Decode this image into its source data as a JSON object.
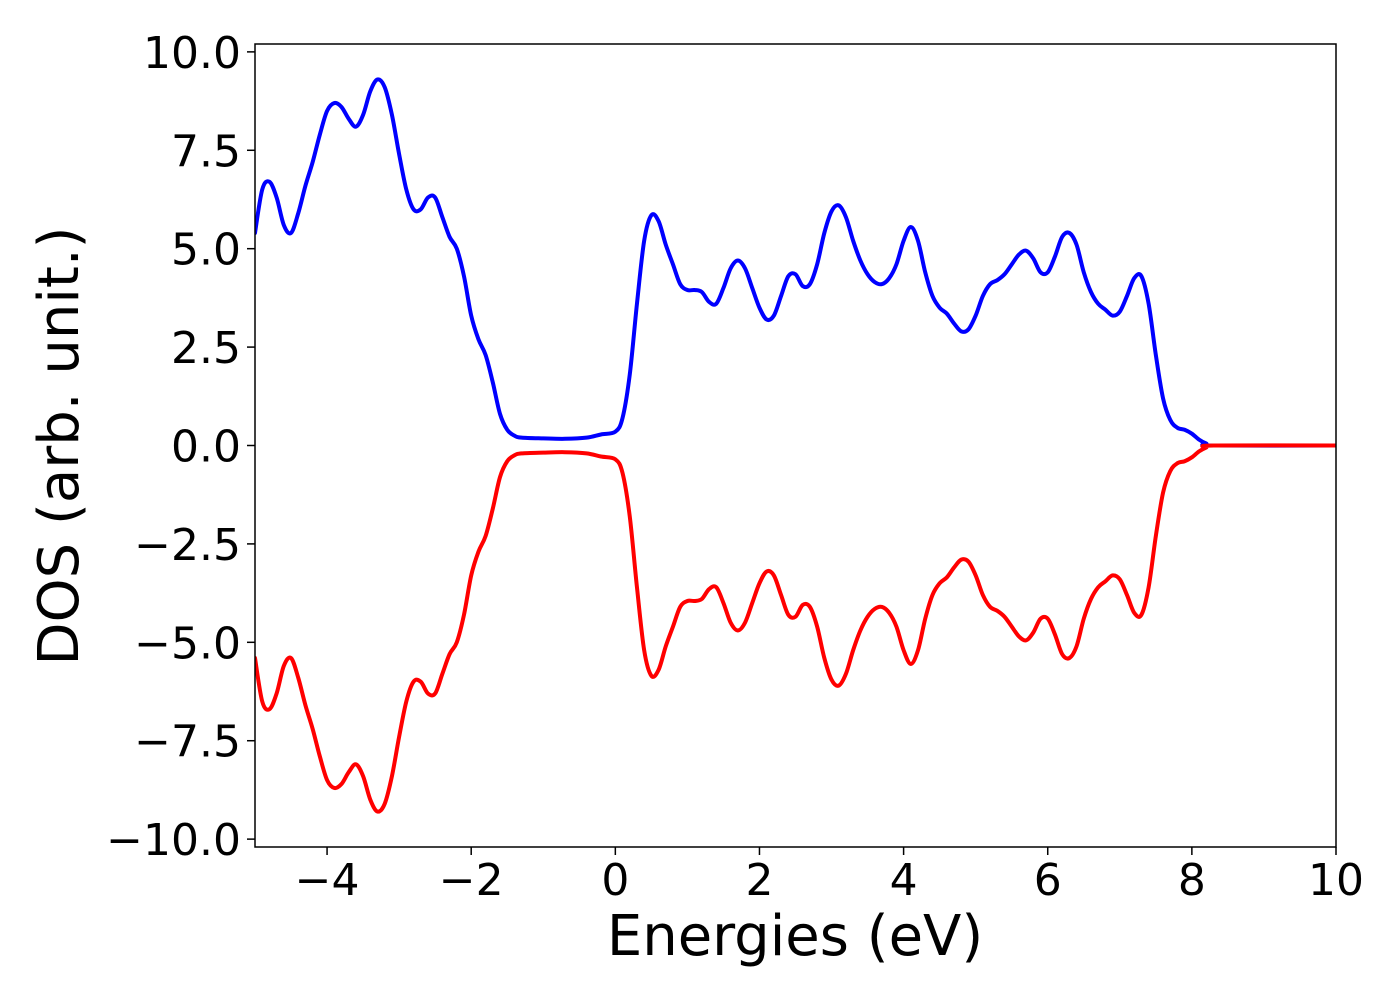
{
  "chart_data": {
    "type": "line",
    "title": "",
    "xlabel": "Energies (eV)",
    "ylabel": "DOS (arb. unit.)",
    "xlim": [
      -5,
      10
    ],
    "ylim": [
      -10.2,
      10.2
    ],
    "xticks": [
      -4,
      -2,
      0,
      2,
      4,
      6,
      8,
      10
    ],
    "xtick_labels": [
      "−4",
      "−2",
      "0",
      "2",
      "4",
      "6",
      "8",
      "10"
    ],
    "yticks": [
      10.0,
      7.5,
      5.0,
      2.5,
      0.0,
      -2.5,
      -5.0,
      -7.5,
      -10.0
    ],
    "ytick_labels": [
      "10.0",
      "7.5",
      "5.0",
      "2.5",
      "0.0",
      "−2.5",
      "−5.0",
      "−7.5",
      "−10.0"
    ],
    "grid": false,
    "legend": "none",
    "series": [
      {
        "color": "#0000ff",
        "points": [
          [
            -5.0,
            5.4
          ],
          [
            -4.9,
            6.5
          ],
          [
            -4.8,
            6.7
          ],
          [
            -4.7,
            6.3
          ],
          [
            -4.6,
            5.6
          ],
          [
            -4.5,
            5.4
          ],
          [
            -4.4,
            5.9
          ],
          [
            -4.3,
            6.6
          ],
          [
            -4.2,
            7.2
          ],
          [
            -4.1,
            7.9
          ],
          [
            -4.0,
            8.5
          ],
          [
            -3.9,
            8.7
          ],
          [
            -3.8,
            8.6
          ],
          [
            -3.7,
            8.3
          ],
          [
            -3.6,
            8.1
          ],
          [
            -3.5,
            8.4
          ],
          [
            -3.4,
            9.0
          ],
          [
            -3.3,
            9.3
          ],
          [
            -3.2,
            9.1
          ],
          [
            -3.1,
            8.4
          ],
          [
            -3.0,
            7.4
          ],
          [
            -2.9,
            6.5
          ],
          [
            -2.8,
            6.0
          ],
          [
            -2.7,
            6.0
          ],
          [
            -2.6,
            6.3
          ],
          [
            -2.5,
            6.3
          ],
          [
            -2.4,
            5.8
          ],
          [
            -2.3,
            5.3
          ],
          [
            -2.2,
            5.0
          ],
          [
            -2.1,
            4.3
          ],
          [
            -2.0,
            3.3
          ],
          [
            -1.9,
            2.7
          ],
          [
            -1.8,
            2.3
          ],
          [
            -1.7,
            1.6
          ],
          [
            -1.6,
            0.8
          ],
          [
            -1.5,
            0.4
          ],
          [
            -1.4,
            0.25
          ],
          [
            -1.3,
            0.2
          ],
          [
            -1.0,
            0.18
          ],
          [
            -0.7,
            0.17
          ],
          [
            -0.4,
            0.2
          ],
          [
            -0.2,
            0.28
          ],
          [
            0.0,
            0.35
          ],
          [
            0.1,
            0.7
          ],
          [
            0.2,
            1.8
          ],
          [
            0.3,
            3.6
          ],
          [
            0.4,
            5.2
          ],
          [
            0.5,
            5.85
          ],
          [
            0.6,
            5.7
          ],
          [
            0.7,
            5.1
          ],
          [
            0.8,
            4.6
          ],
          [
            0.9,
            4.1
          ],
          [
            1.0,
            3.95
          ],
          [
            1.1,
            3.95
          ],
          [
            1.2,
            3.9
          ],
          [
            1.3,
            3.65
          ],
          [
            1.4,
            3.6
          ],
          [
            1.5,
            4.0
          ],
          [
            1.6,
            4.5
          ],
          [
            1.7,
            4.7
          ],
          [
            1.8,
            4.5
          ],
          [
            1.9,
            4.0
          ],
          [
            2.0,
            3.5
          ],
          [
            2.1,
            3.2
          ],
          [
            2.2,
            3.3
          ],
          [
            2.3,
            3.8
          ],
          [
            2.4,
            4.3
          ],
          [
            2.5,
            4.35
          ],
          [
            2.6,
            4.05
          ],
          [
            2.7,
            4.1
          ],
          [
            2.8,
            4.6
          ],
          [
            2.9,
            5.4
          ],
          [
            3.0,
            5.95
          ],
          [
            3.1,
            6.1
          ],
          [
            3.2,
            5.8
          ],
          [
            3.3,
            5.2
          ],
          [
            3.4,
            4.7
          ],
          [
            3.5,
            4.35
          ],
          [
            3.6,
            4.15
          ],
          [
            3.7,
            4.1
          ],
          [
            3.8,
            4.25
          ],
          [
            3.9,
            4.6
          ],
          [
            4.0,
            5.2
          ],
          [
            4.1,
            5.55
          ],
          [
            4.2,
            5.2
          ],
          [
            4.3,
            4.4
          ],
          [
            4.4,
            3.8
          ],
          [
            4.5,
            3.5
          ],
          [
            4.6,
            3.35
          ],
          [
            4.7,
            3.1
          ],
          [
            4.8,
            2.9
          ],
          [
            4.9,
            2.95
          ],
          [
            5.0,
            3.3
          ],
          [
            5.1,
            3.8
          ],
          [
            5.2,
            4.1
          ],
          [
            5.3,
            4.2
          ],
          [
            5.4,
            4.35
          ],
          [
            5.5,
            4.6
          ],
          [
            5.6,
            4.85
          ],
          [
            5.7,
            4.95
          ],
          [
            5.8,
            4.75
          ],
          [
            5.9,
            4.4
          ],
          [
            6.0,
            4.4
          ],
          [
            6.1,
            4.8
          ],
          [
            6.2,
            5.3
          ],
          [
            6.3,
            5.4
          ],
          [
            6.4,
            5.1
          ],
          [
            6.5,
            4.4
          ],
          [
            6.6,
            3.9
          ],
          [
            6.7,
            3.6
          ],
          [
            6.8,
            3.45
          ],
          [
            6.9,
            3.3
          ],
          [
            7.0,
            3.4
          ],
          [
            7.1,
            3.8
          ],
          [
            7.2,
            4.25
          ],
          [
            7.3,
            4.3
          ],
          [
            7.4,
            3.6
          ],
          [
            7.5,
            2.3
          ],
          [
            7.6,
            1.2
          ],
          [
            7.7,
            0.65
          ],
          [
            7.8,
            0.45
          ],
          [
            7.9,
            0.4
          ],
          [
            8.0,
            0.3
          ],
          [
            8.1,
            0.15
          ],
          [
            8.2,
            0.05
          ],
          [
            8.3,
            0.0
          ],
          [
            10.0,
            0.0
          ]
        ]
      },
      {
        "color": "#ff0000",
        "points": [
          [
            -5.0,
            -5.4
          ],
          [
            -4.9,
            -6.5
          ],
          [
            -4.8,
            -6.7
          ],
          [
            -4.7,
            -6.3
          ],
          [
            -4.6,
            -5.6
          ],
          [
            -4.5,
            -5.4
          ],
          [
            -4.4,
            -5.9
          ],
          [
            -4.3,
            -6.6
          ],
          [
            -4.2,
            -7.2
          ],
          [
            -4.1,
            -7.9
          ],
          [
            -4.0,
            -8.5
          ],
          [
            -3.9,
            -8.7
          ],
          [
            -3.8,
            -8.6
          ],
          [
            -3.7,
            -8.3
          ],
          [
            -3.6,
            -8.1
          ],
          [
            -3.5,
            -8.4
          ],
          [
            -3.4,
            -9.0
          ],
          [
            -3.3,
            -9.3
          ],
          [
            -3.2,
            -9.1
          ],
          [
            -3.1,
            -8.4
          ],
          [
            -3.0,
            -7.4
          ],
          [
            -2.9,
            -6.5
          ],
          [
            -2.8,
            -6.0
          ],
          [
            -2.7,
            -6.0
          ],
          [
            -2.6,
            -6.3
          ],
          [
            -2.5,
            -6.3
          ],
          [
            -2.4,
            -5.8
          ],
          [
            -2.3,
            -5.3
          ],
          [
            -2.2,
            -5.0
          ],
          [
            -2.1,
            -4.3
          ],
          [
            -2.0,
            -3.3
          ],
          [
            -1.9,
            -2.7
          ],
          [
            -1.8,
            -2.3
          ],
          [
            -1.7,
            -1.6
          ],
          [
            -1.6,
            -0.8
          ],
          [
            -1.5,
            -0.4
          ],
          [
            -1.4,
            -0.25
          ],
          [
            -1.3,
            -0.2
          ],
          [
            -1.0,
            -0.18
          ],
          [
            -0.7,
            -0.17
          ],
          [
            -0.4,
            -0.2
          ],
          [
            -0.2,
            -0.28
          ],
          [
            0.0,
            -0.35
          ],
          [
            0.1,
            -0.7
          ],
          [
            0.2,
            -1.8
          ],
          [
            0.3,
            -3.6
          ],
          [
            0.4,
            -5.2
          ],
          [
            0.5,
            -5.85
          ],
          [
            0.6,
            -5.7
          ],
          [
            0.7,
            -5.1
          ],
          [
            0.8,
            -4.6
          ],
          [
            0.9,
            -4.1
          ],
          [
            1.0,
            -3.95
          ],
          [
            1.1,
            -3.95
          ],
          [
            1.2,
            -3.9
          ],
          [
            1.3,
            -3.65
          ],
          [
            1.4,
            -3.6
          ],
          [
            1.5,
            -4.0
          ],
          [
            1.6,
            -4.5
          ],
          [
            1.7,
            -4.7
          ],
          [
            1.8,
            -4.5
          ],
          [
            1.9,
            -4.0
          ],
          [
            2.0,
            -3.5
          ],
          [
            2.1,
            -3.2
          ],
          [
            2.2,
            -3.3
          ],
          [
            2.3,
            -3.8
          ],
          [
            2.4,
            -4.3
          ],
          [
            2.5,
            -4.35
          ],
          [
            2.6,
            -4.05
          ],
          [
            2.7,
            -4.1
          ],
          [
            2.8,
            -4.6
          ],
          [
            2.9,
            -5.4
          ],
          [
            3.0,
            -5.95
          ],
          [
            3.1,
            -6.1
          ],
          [
            3.2,
            -5.8
          ],
          [
            3.3,
            -5.2
          ],
          [
            3.4,
            -4.7
          ],
          [
            3.5,
            -4.35
          ],
          [
            3.6,
            -4.15
          ],
          [
            3.7,
            -4.1
          ],
          [
            3.8,
            -4.25
          ],
          [
            3.9,
            -4.6
          ],
          [
            4.0,
            -5.2
          ],
          [
            4.1,
            -5.55
          ],
          [
            4.2,
            -5.2
          ],
          [
            4.3,
            -4.4
          ],
          [
            4.4,
            -3.8
          ],
          [
            4.5,
            -3.5
          ],
          [
            4.6,
            -3.35
          ],
          [
            4.7,
            -3.1
          ],
          [
            4.8,
            -2.9
          ],
          [
            4.9,
            -2.95
          ],
          [
            5.0,
            -3.3
          ],
          [
            5.1,
            -3.8
          ],
          [
            5.2,
            -4.1
          ],
          [
            5.3,
            -4.2
          ],
          [
            5.4,
            -4.35
          ],
          [
            5.5,
            -4.6
          ],
          [
            5.6,
            -4.85
          ],
          [
            5.7,
            -4.95
          ],
          [
            5.8,
            -4.75
          ],
          [
            5.9,
            -4.4
          ],
          [
            6.0,
            -4.4
          ],
          [
            6.1,
            -4.8
          ],
          [
            6.2,
            -5.3
          ],
          [
            6.3,
            -5.4
          ],
          [
            6.4,
            -5.1
          ],
          [
            6.5,
            -4.4
          ],
          [
            6.6,
            -3.9
          ],
          [
            6.7,
            -3.6
          ],
          [
            6.8,
            -3.45
          ],
          [
            6.9,
            -3.3
          ],
          [
            7.0,
            -3.4
          ],
          [
            7.1,
            -3.8
          ],
          [
            7.2,
            -4.25
          ],
          [
            7.3,
            -4.3
          ],
          [
            7.4,
            -3.6
          ],
          [
            7.5,
            -2.3
          ],
          [
            7.6,
            -1.2
          ],
          [
            7.7,
            -0.65
          ],
          [
            7.8,
            -0.45
          ],
          [
            7.9,
            -0.4
          ],
          [
            8.0,
            -0.3
          ],
          [
            8.1,
            -0.15
          ],
          [
            8.2,
            -0.05
          ],
          [
            8.3,
            0.0
          ],
          [
            10.0,
            0.0
          ]
        ]
      }
    ]
  }
}
